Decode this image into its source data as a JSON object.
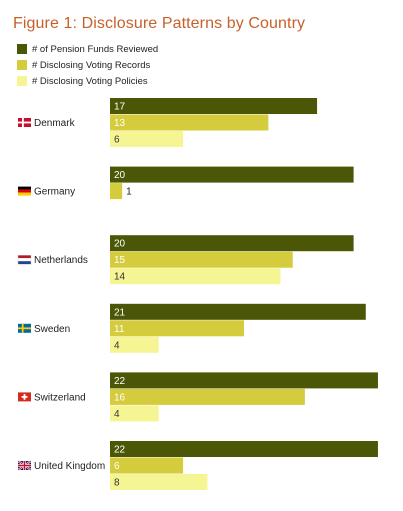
{
  "chart_data": {
    "type": "bar",
    "orientation": "horizontal",
    "title": "Figure 1: Disclosure Patterns by Country",
    "categories": [
      "Denmark",
      "Germany",
      "Netherlands",
      "Sweden",
      "Switzerland",
      "United Kingdom"
    ],
    "category_icons": [
      "denmark-flag-icon",
      "germany-flag-icon",
      "netherlands-flag-icon",
      "sweden-flag-icon",
      "switzerland-flag-icon",
      "united-kingdom-flag-icon"
    ],
    "series": [
      {
        "name": "# of Pension Funds Reviewed",
        "color": "#4b5706",
        "label_color": "#ffffff",
        "values": [
          17,
          20,
          20,
          21,
          22,
          22
        ]
      },
      {
        "name": "# Disclosing Voting Records",
        "color": "#d4cb3d",
        "label_color": "#ffffff",
        "values": [
          13,
          1,
          15,
          11,
          16,
          6
        ]
      },
      {
        "name": "# Disclosing Voting Policies",
        "color": "#f6f594",
        "label_color": "#333333",
        "values": [
          6,
          null,
          14,
          4,
          4,
          8
        ]
      }
    ],
    "legend_position": "top-left",
    "grid": false
  }
}
